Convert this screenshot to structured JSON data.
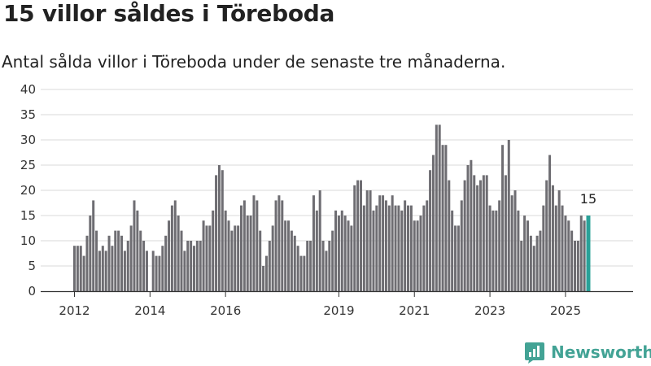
{
  "title": "15 villor såldes i Töreboda",
  "subtitle": "Antal sålda villor i Töreboda under de senaste tre månaderna.",
  "brand": {
    "name": "Newsworthy",
    "icon": "newsworthy-logo-icon"
  },
  "colors": {
    "bar": "#6e6d72",
    "highlight": "#2aa198",
    "grid": "#d9d9d9",
    "axis": "#333333",
    "brand": "#43a395"
  },
  "chart_data": {
    "type": "bar",
    "title": "15 villor såldes i Töreboda",
    "subtitle": "Antal sålda villor i Töreboda under de senaste tre månaderna.",
    "xlabel": "",
    "ylabel": "",
    "x_unit": "month",
    "x_start": "2012-01",
    "x_end": "2025-08",
    "ylim": [
      0,
      40
    ],
    "yticks": [
      0,
      5,
      10,
      15,
      20,
      25,
      30,
      35,
      40
    ],
    "xticks": [
      "2012",
      "2014",
      "2016",
      "2019",
      "2021",
      "2023",
      "2025"
    ],
    "grid": "horizontal",
    "values": [
      9,
      9,
      9,
      7,
      11,
      15,
      18,
      12,
      8,
      9,
      8,
      11,
      9,
      12,
      12,
      11,
      8,
      10,
      13,
      18,
      16,
      12,
      10,
      8,
      0,
      8,
      7,
      7,
      9,
      11,
      14,
      17,
      18,
      15,
      12,
      8,
      10,
      10,
      9,
      10,
      10,
      14,
      13,
      13,
      16,
      23,
      25,
      24,
      16,
      14,
      12,
      13,
      13,
      17,
      18,
      15,
      15,
      19,
      18,
      12,
      5,
      7,
      10,
      13,
      18,
      19,
      18,
      14,
      14,
      12,
      11,
      9,
      7,
      7,
      10,
      10,
      19,
      16,
      20,
      10,
      8,
      10,
      12,
      16,
      15,
      16,
      15,
      14,
      13,
      21,
      22,
      22,
      17,
      20,
      20,
      16,
      17,
      19,
      19,
      18,
      17,
      19,
      17,
      17,
      16,
      18,
      17,
      17,
      14,
      14,
      15,
      17,
      18,
      24,
      27,
      33,
      33,
      29,
      29,
      22,
      16,
      13,
      13,
      18,
      22,
      25,
      26,
      23,
      21,
      22,
      23,
      23,
      17,
      16,
      16,
      18,
      29,
      23,
      30,
      19,
      20,
      16,
      10,
      15,
      14,
      11,
      9,
      11,
      12,
      17,
      22,
      27,
      21,
      17,
      20,
      17,
      15,
      14,
      12,
      10,
      10,
      15,
      14,
      15
    ],
    "highlight_last": true,
    "annotations": [
      {
        "label": "15",
        "at": "last"
      }
    ]
  }
}
